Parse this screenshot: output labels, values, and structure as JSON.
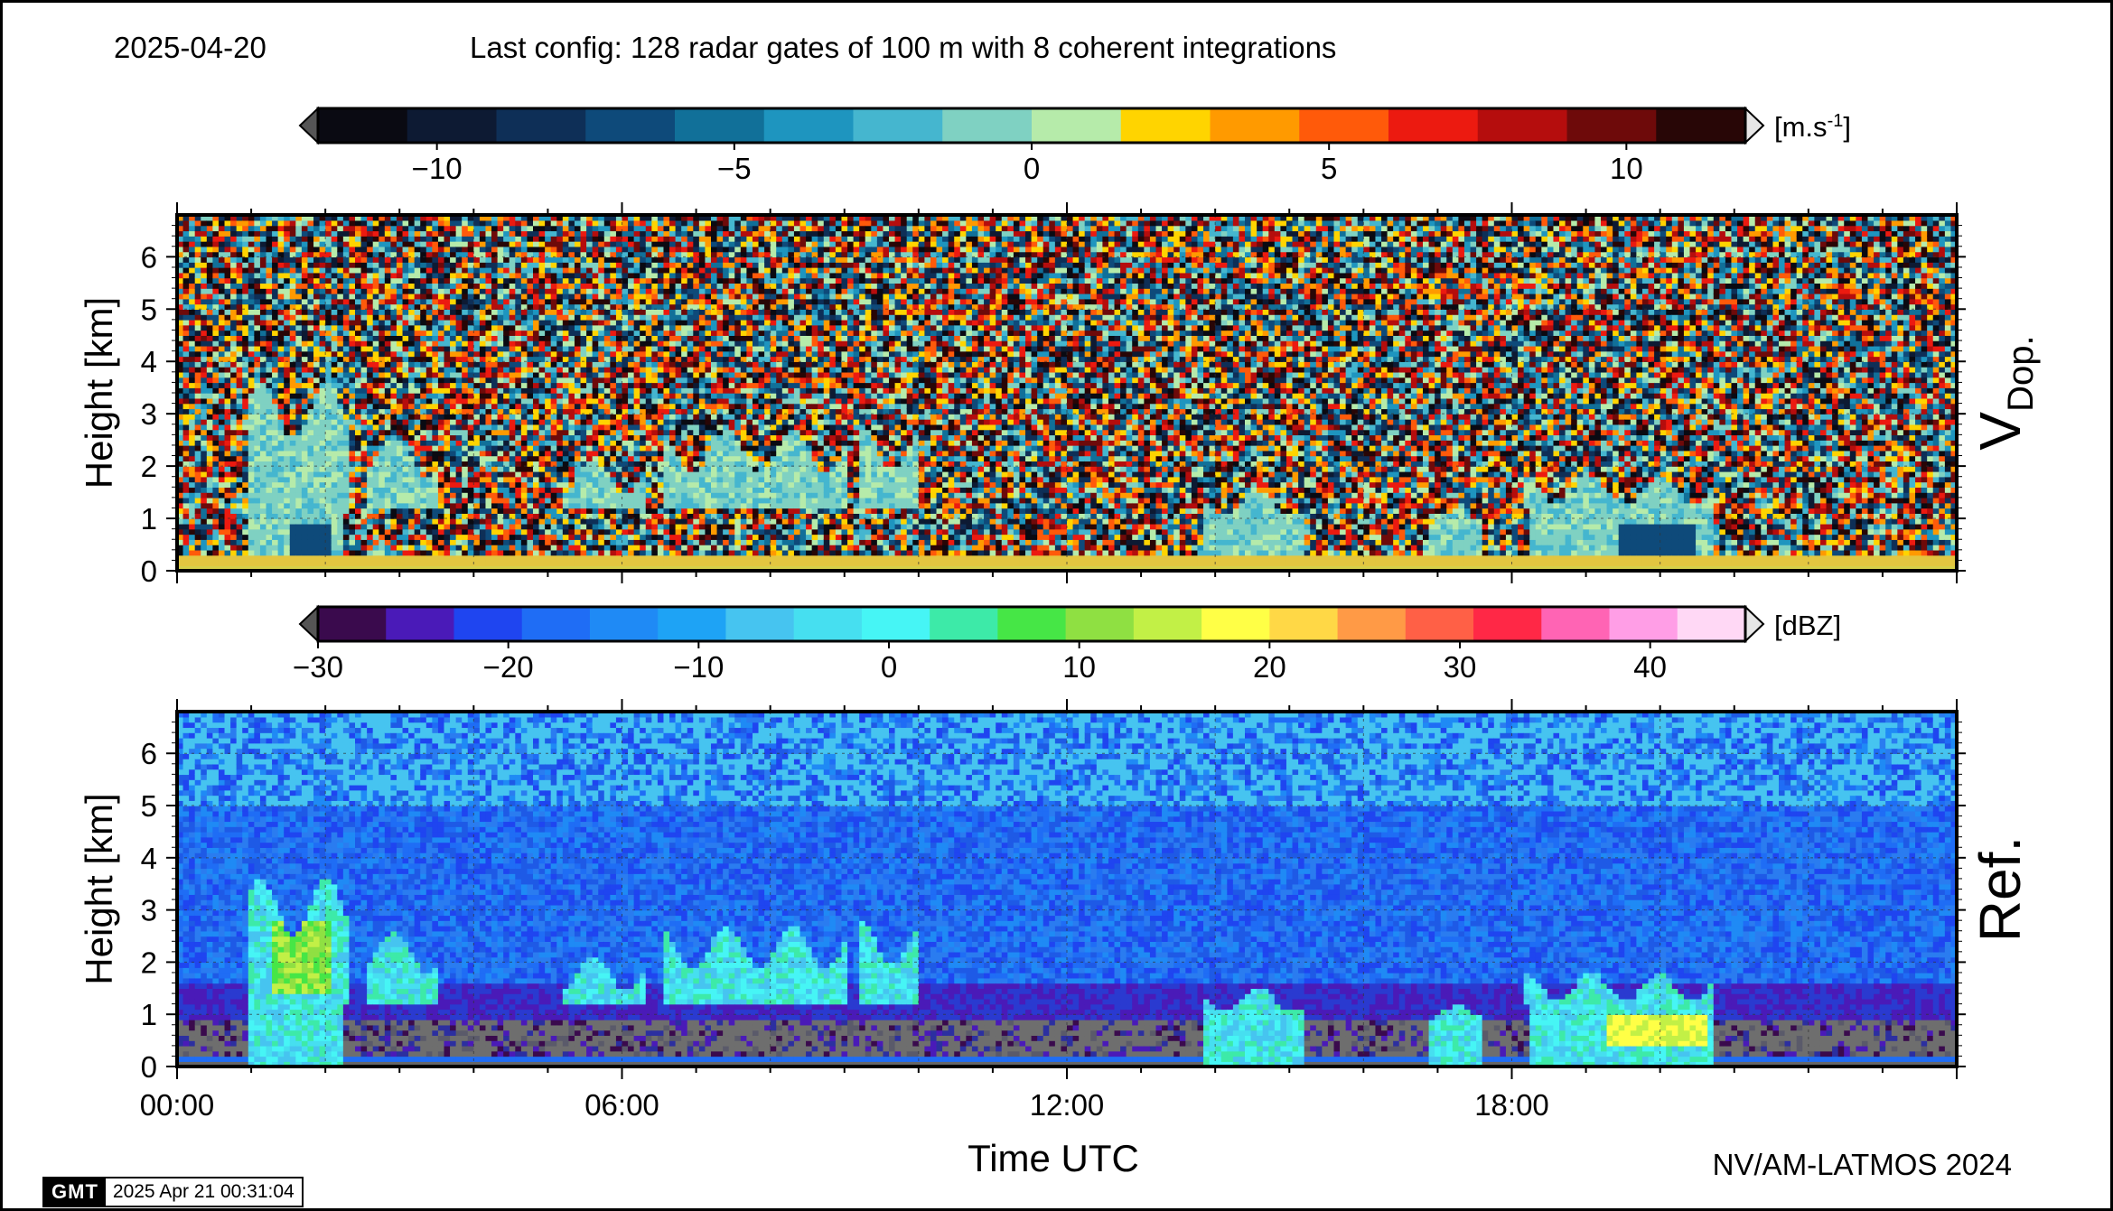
{
  "header": {
    "date": "2025-04-20",
    "config": "Last config: 128 radar gates of 100 m with 8 coherent integrations"
  },
  "footer": {
    "credit": "NV/AM-LATMOS 2024",
    "gmt_logo": "GMT",
    "timestamp": "2025 Apr 21 00:31:04"
  },
  "chart_data": [
    {
      "type": "heatmap",
      "panel_label": "V_Dop.",
      "ylabel": "Height [km]",
      "xlabel": "",
      "ylim": [
        0,
        6.8
      ],
      "xlim_hours": [
        0,
        24
      ],
      "yticks": [
        "0",
        "1",
        "2",
        "3",
        "4",
        "5",
        "6"
      ],
      "grid": true,
      "colorbar": {
        "unit": "[m.s-1]",
        "range": [
          -12,
          12
        ],
        "ticks": [
          "−10",
          "−5",
          "0",
          "5",
          "10"
        ],
        "tick_values": [
          -10,
          -5,
          0,
          5,
          10
        ],
        "colors": [
          "#0a0a12",
          "#0d1a33",
          "#0e2f57",
          "#0e4a7a",
          "#117099",
          "#1e95bf",
          "#45b6cf",
          "#7fd1c2",
          "#b6ebaa",
          "#ffd400",
          "#ff9a00",
          "#ff5a0a",
          "#ec1a10",
          "#b50d0d",
          "#6e0a0a",
          "#280606"
        ],
        "extends_both": true
      },
      "features": {
        "background": "random noise above cloud returns",
        "cloud_echoes_hours": [
          [
            1.0,
            2.3
          ],
          [
            2.6,
            3.5
          ],
          [
            5.2,
            6.3
          ],
          [
            6.6,
            9.0
          ],
          [
            9.2,
            10.0
          ],
          [
            13.8,
            15.2
          ],
          [
            16.9,
            17.6
          ],
          [
            18.2,
            20.7
          ]
        ],
        "near_surface_layer_km": [
          0.0,
          0.25
        ]
      }
    },
    {
      "type": "heatmap",
      "panel_label": "Ref.",
      "ylabel": "Height [km]",
      "xlabel": "Time UTC",
      "ylim": [
        0,
        6.8
      ],
      "xlim_hours": [
        0,
        24
      ],
      "xticks": [
        "00:00",
        "06:00",
        "12:00",
        "18:00"
      ],
      "xtick_values": [
        0,
        6,
        12,
        18
      ],
      "yticks": [
        "0",
        "1",
        "2",
        "3",
        "4",
        "5",
        "6"
      ],
      "grid": true,
      "colorbar": {
        "unit": "[dBZ]",
        "range": [
          -30,
          45
        ],
        "ticks": [
          "−30",
          "−20",
          "−10",
          "0",
          "10",
          "20",
          "30",
          "40"
        ],
        "tick_values": [
          -30,
          -20,
          -10,
          0,
          10,
          20,
          30,
          40
        ],
        "colors": [
          "#3a0a4d",
          "#4a1ab8",
          "#1f45f0",
          "#1f6df5",
          "#1f8af5",
          "#1ea3f5",
          "#46c4f0",
          "#46dff0",
          "#46f5f5",
          "#3deaa8",
          "#46e646",
          "#8fe042",
          "#c2f046",
          "#ffff46",
          "#ffd846",
          "#ff9a46",
          "#ff6046",
          "#ff2846",
          "#ff64b4",
          "#ff9ee6",
          "#ffd8f5"
        ],
        "extends_both": true
      },
      "features": {
        "background": "blue clear-air noise above, grey near-surface",
        "cloud_echoes_hours": [
          [
            1.0,
            2.3
          ],
          [
            2.6,
            3.5
          ],
          [
            5.2,
            6.3
          ],
          [
            6.6,
            9.0
          ],
          [
            9.2,
            10.0
          ],
          [
            13.8,
            15.2
          ],
          [
            16.9,
            17.6
          ],
          [
            18.2,
            20.7
          ]
        ]
      }
    }
  ]
}
